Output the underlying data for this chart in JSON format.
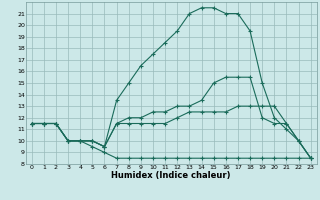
{
  "xlabel": "Humidex (Indice chaleur)",
  "bg_color": "#cce8e8",
  "grid_color": "#99bbbb",
  "line_color": "#1a6b5a",
  "xlim": [
    -0.5,
    23.5
  ],
  "ylim": [
    8,
    22
  ],
  "xticks": [
    0,
    1,
    2,
    3,
    4,
    5,
    6,
    7,
    8,
    9,
    10,
    11,
    12,
    13,
    14,
    15,
    16,
    17,
    18,
    19,
    20,
    21,
    22,
    23
  ],
  "yticks": [
    8,
    9,
    10,
    11,
    12,
    13,
    14,
    15,
    16,
    17,
    18,
    19,
    20,
    21
  ],
  "line1_x": [
    0,
    1,
    2,
    3,
    4,
    5,
    6,
    7,
    8,
    9,
    10,
    11,
    12,
    13,
    14,
    15,
    16,
    17,
    18,
    19,
    20,
    21,
    22,
    23
  ],
  "line1_y": [
    11.5,
    11.5,
    11.5,
    10.0,
    10.0,
    9.5,
    9.0,
    8.5,
    8.5,
    8.5,
    8.5,
    8.5,
    8.5,
    8.5,
    8.5,
    8.5,
    8.5,
    8.5,
    8.5,
    8.5,
    8.5,
    8.5,
    8.5,
    8.5
  ],
  "line2_x": [
    0,
    1,
    2,
    3,
    4,
    5,
    6,
    7,
    8,
    9,
    10,
    11,
    12,
    13,
    14,
    15,
    16,
    17,
    18,
    19,
    20,
    21,
    22,
    23
  ],
  "line2_y": [
    11.5,
    11.5,
    11.5,
    10.0,
    10.0,
    10.0,
    9.5,
    11.5,
    11.5,
    11.5,
    11.5,
    11.5,
    12.0,
    12.5,
    12.5,
    12.5,
    12.5,
    13.0,
    13.0,
    13.0,
    13.0,
    11.5,
    10.0,
    8.5
  ],
  "line3_x": [
    0,
    1,
    2,
    3,
    4,
    5,
    6,
    7,
    8,
    9,
    10,
    11,
    12,
    13,
    14,
    15,
    16,
    17,
    18,
    19,
    20,
    21,
    22,
    23
  ],
  "line3_y": [
    11.5,
    11.5,
    11.5,
    10.0,
    10.0,
    10.0,
    9.5,
    11.5,
    12.0,
    12.0,
    12.5,
    12.5,
    13.0,
    13.0,
    13.5,
    15.0,
    15.5,
    15.5,
    15.5,
    12.0,
    11.5,
    11.5,
    10.0,
    8.5
  ],
  "line4_x": [
    0,
    1,
    2,
    3,
    4,
    5,
    6,
    7,
    8,
    9,
    10,
    11,
    12,
    13,
    14,
    15,
    16,
    17,
    18,
    19,
    20,
    21,
    22,
    23
  ],
  "line4_y": [
    11.5,
    11.5,
    11.5,
    10.0,
    10.0,
    10.0,
    9.5,
    13.5,
    15.0,
    16.5,
    17.5,
    18.5,
    19.5,
    21.0,
    21.5,
    21.5,
    21.0,
    21.0,
    19.5,
    15.0,
    12.0,
    11.0,
    10.0,
    8.5
  ]
}
